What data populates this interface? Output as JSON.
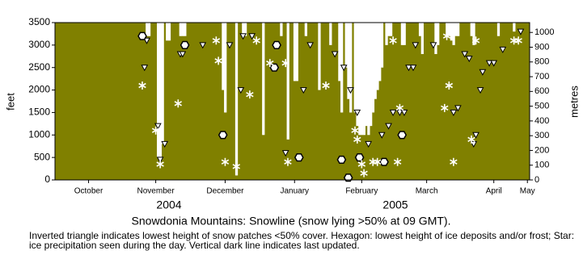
{
  "chart_data": {
    "type": "snowline",
    "title": "Snowdonia Mountains: Snowline (snow lying >50% at 09 GMT).",
    "note": "Inverted triangle indicates lowest height of snow patches <50% cover. Hexagon: lowest height of ice deposits and/or frost; Star: ice precipitation seen during the day. Vertical dark line indicates last updated.",
    "ylabel": "feet",
    "y2label": "metres",
    "year_labels": [
      "2004",
      "2005"
    ],
    "background_color": "#808000",
    "snow_color": "#ffffff",
    "xlim": [
      0,
      212
    ],
    "xticks": [
      {
        "value": 15,
        "label": "October"
      },
      {
        "value": 45,
        "label": "November"
      },
      {
        "value": 76,
        "label": "December"
      },
      {
        "value": 107,
        "label": "January"
      },
      {
        "value": 137,
        "label": "February"
      },
      {
        "value": 166,
        "label": "March"
      },
      {
        "value": 196,
        "label": "April"
      },
      {
        "value": 211,
        "label": "May"
      }
    ],
    "ylim": [
      0,
      3500
    ],
    "yticks": [
      0,
      500,
      1000,
      1500,
      2000,
      2500,
      3000,
      3500
    ],
    "y2lim": [
      0,
      1066.8
    ],
    "y2ticks": [
      0,
      100,
      200,
      300,
      400,
      500,
      600,
      700,
      800,
      900,
      1000
    ],
    "series": [
      {
        "name": "Snowline",
        "marker": "bar",
        "x": [
          41,
          42,
          46,
          47,
          48,
          50,
          51,
          56,
          57,
          58,
          75,
          76,
          81,
          84,
          85,
          93,
          101,
          104,
          107,
          108,
          112,
          118,
          123,
          127,
          128,
          130,
          131,
          132,
          134,
          135,
          136,
          137,
          138,
          139,
          140,
          141,
          142,
          143,
          144,
          145,
          146,
          148,
          149,
          150,
          155,
          156,
          163,
          164,
          170,
          171,
          175,
          176,
          177,
          178,
          179,
          180,
          186,
          187,
          198,
          205
        ],
        "values": [
          3200,
          3200,
          500,
          500,
          800,
          3100,
          3100,
          3200,
          3200,
          3200,
          2000,
          1500,
          100,
          3200,
          3200,
          1000,
          3200,
          900,
          2200,
          2200,
          3200,
          2000,
          3000,
          2200,
          1500,
          2500,
          1800,
          1500,
          1500,
          1200,
          1000,
          1000,
          1000,
          1200,
          1000,
          1200,
          1500,
          1800,
          2000,
          2200,
          2500,
          3000,
          3200,
          3200,
          3000,
          3000,
          3200,
          2800,
          2800,
          3000,
          3200,
          3200,
          3100,
          3000,
          3200,
          3200,
          3200,
          3000,
          3200,
          3300
        ]
      },
      {
        "name": "Snow patches",
        "marker": "triangle",
        "x": [
          41,
          40,
          46,
          49,
          47,
          56,
          57,
          66,
          78,
          84,
          88,
          83,
          103,
          111,
          114,
          125,
          129,
          132,
          135,
          140,
          146,
          149,
          151,
          154,
          156,
          158,
          160,
          161,
          169,
          178,
          180,
          183,
          185,
          187,
          188,
          190,
          191,
          194,
          196,
          200,
          208
        ],
        "values": [
          3100,
          2500,
          1200,
          800,
          450,
          2800,
          2800,
          3000,
          3000,
          3200,
          3200,
          2000,
          600,
          2000,
          3000,
          2800,
          2500,
          2000,
          1500,
          800,
          1000,
          1200,
          1500,
          1500,
          1500,
          2500,
          2500,
          3000,
          3000,
          1500,
          1600,
          2800,
          2700,
          800,
          1000,
          2000,
          2400,
          2600,
          2600,
          2900,
          3300
        ]
      },
      {
        "name": "Ice deposits",
        "marker": "hexagon",
        "x": [
          39,
          75,
          58,
          99,
          98,
          109,
          128,
          131,
          136,
          147,
          155
        ],
        "values": [
          3200,
          1000,
          3000,
          3000,
          2500,
          500,
          450,
          50,
          500,
          400,
          1000
        ]
      },
      {
        "name": "Ice precipitation",
        "marker": "star",
        "x": [
          39,
          45,
          47,
          55,
          72,
          73,
          76,
          81,
          87,
          90,
          96,
          103,
          104,
          121,
          134,
          135,
          138,
          137,
          142,
          144,
          153,
          154,
          151,
          175,
          174,
          176,
          178,
          186,
          188,
          205,
          207
        ],
        "values": [
          2100,
          1100,
          350,
          1700,
          3100,
          2650,
          400,
          300,
          1900,
          3100,
          2600,
          2600,
          400,
          2100,
          1100,
          900,
          150,
          350,
          400,
          400,
          400,
          1600,
          3100,
          3200,
          1600,
          2100,
          400,
          900,
          3100,
          3100,
          3100
        ]
      }
    ]
  }
}
